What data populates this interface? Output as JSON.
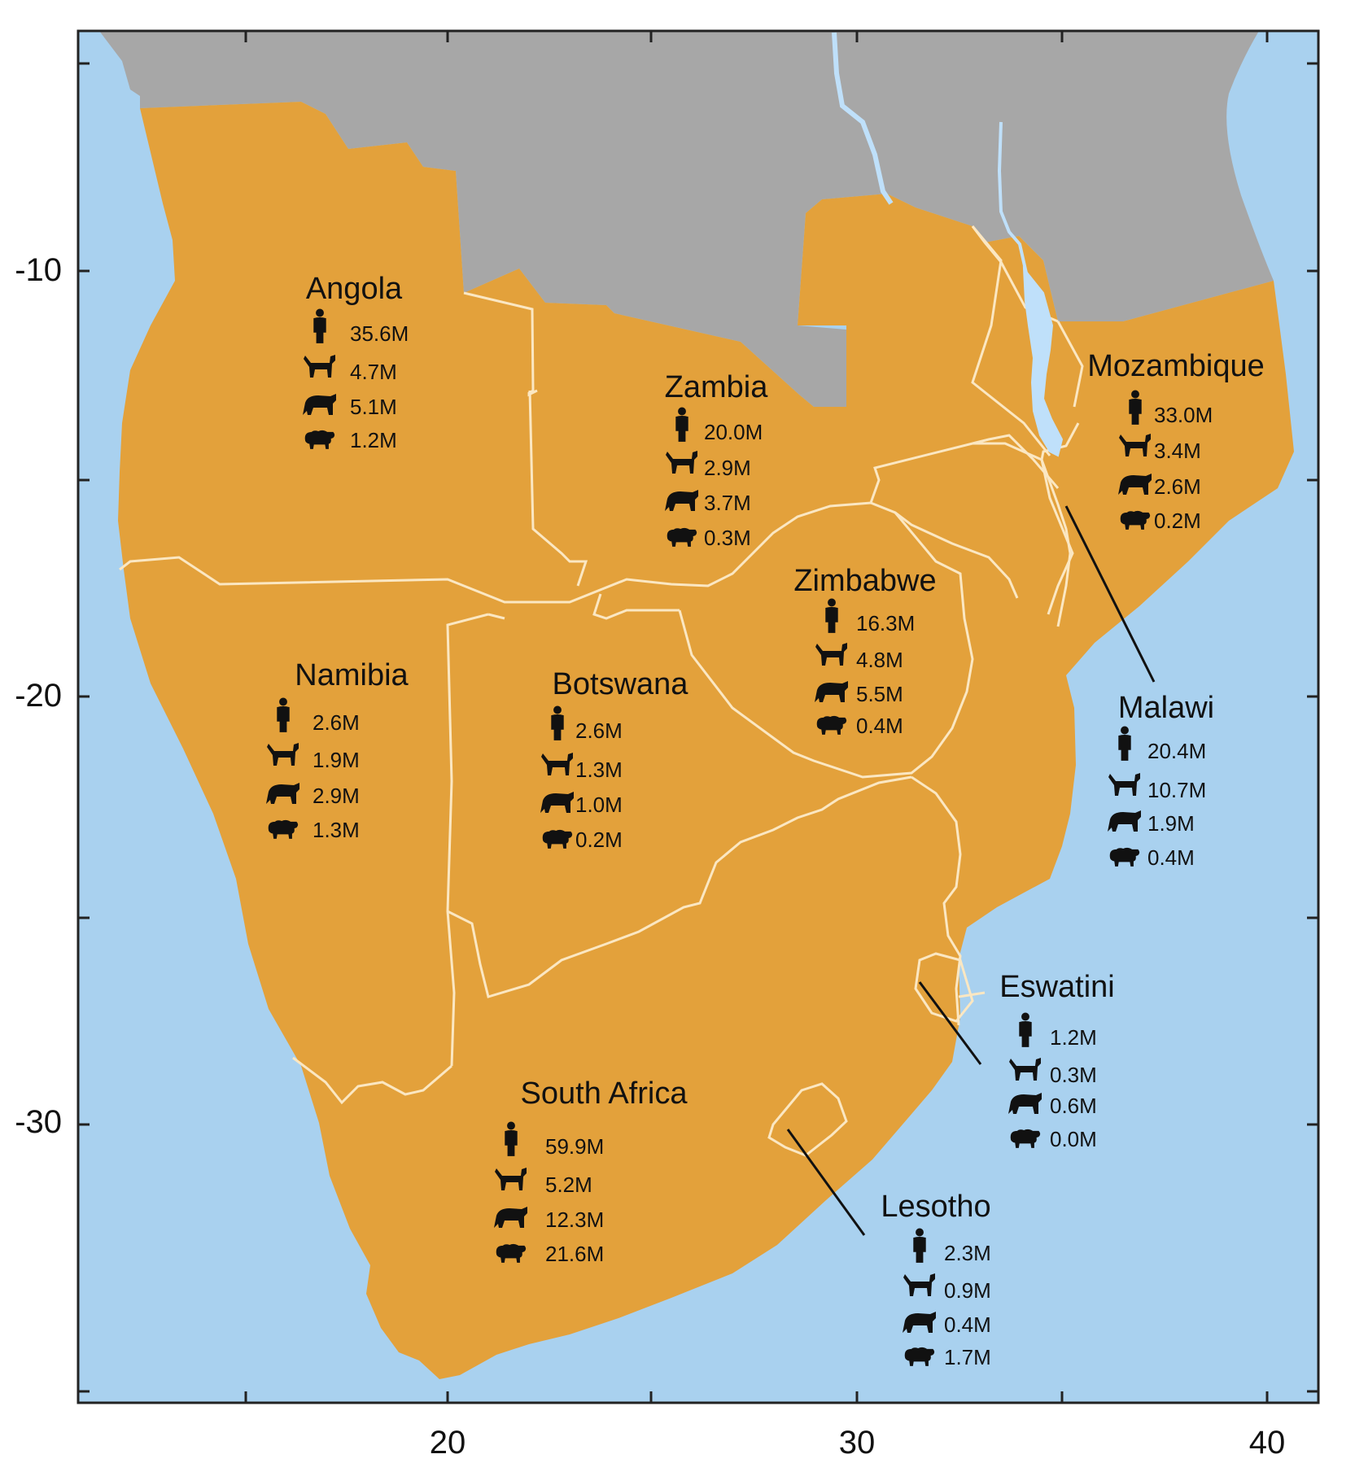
{
  "map": {
    "colors": {
      "ocean": "#a9d1ef",
      "region": "#e3a13b",
      "other_land": "#a7a7a7",
      "border": "#fbe7c2",
      "river_lake": "#bfe0fa",
      "text": "#111111"
    },
    "axes": {
      "x_ticks": [
        "20",
        "30",
        "40"
      ],
      "y_ticks": [
        "-10",
        "-20",
        "-30"
      ]
    },
    "stat_icons": [
      "person-icon",
      "goat-icon",
      "cattle-icon",
      "sheep-icon"
    ],
    "countries": [
      {
        "id": "angola",
        "name": "Angola",
        "people": "35.6M",
        "goats": "4.7M",
        "cattle": "5.1M",
        "sheep": "1.2M"
      },
      {
        "id": "zambia",
        "name": "Zambia",
        "people": "20.0M",
        "goats": "2.9M",
        "cattle": "3.7M",
        "sheep": "0.3M"
      },
      {
        "id": "mozambique",
        "name": "Mozambique",
        "people": "33.0M",
        "goats": "3.4M",
        "cattle": "2.6M",
        "sheep": "0.2M"
      },
      {
        "id": "zimbabwe",
        "name": "Zimbabwe",
        "people": "16.3M",
        "goats": "4.8M",
        "cattle": "5.5M",
        "sheep": "0.4M"
      },
      {
        "id": "namibia",
        "name": "Namibia",
        "people": "2.6M",
        "goats": "1.9M",
        "cattle": "2.9M",
        "sheep": "1.3M"
      },
      {
        "id": "botswana",
        "name": "Botswana",
        "people": "2.6M",
        "goats": "1.3M",
        "cattle": "1.0M",
        "sheep": "0.2M"
      },
      {
        "id": "malawi",
        "name": "Malawi",
        "people": "20.4M",
        "goats": "10.7M",
        "cattle": "1.9M",
        "sheep": "0.4M"
      },
      {
        "id": "eswatini",
        "name": "Eswatini",
        "people": "1.2M",
        "goats": "0.3M",
        "cattle": "0.6M",
        "sheep": "0.0M"
      },
      {
        "id": "south-africa",
        "name": "South Africa",
        "people": "59.9M",
        "goats": "5.2M",
        "cattle": "12.3M",
        "sheep": "21.6M"
      },
      {
        "id": "lesotho",
        "name": "Lesotho",
        "people": "2.3M",
        "goats": "0.9M",
        "cattle": "0.4M",
        "sheep": "1.7M"
      }
    ]
  }
}
